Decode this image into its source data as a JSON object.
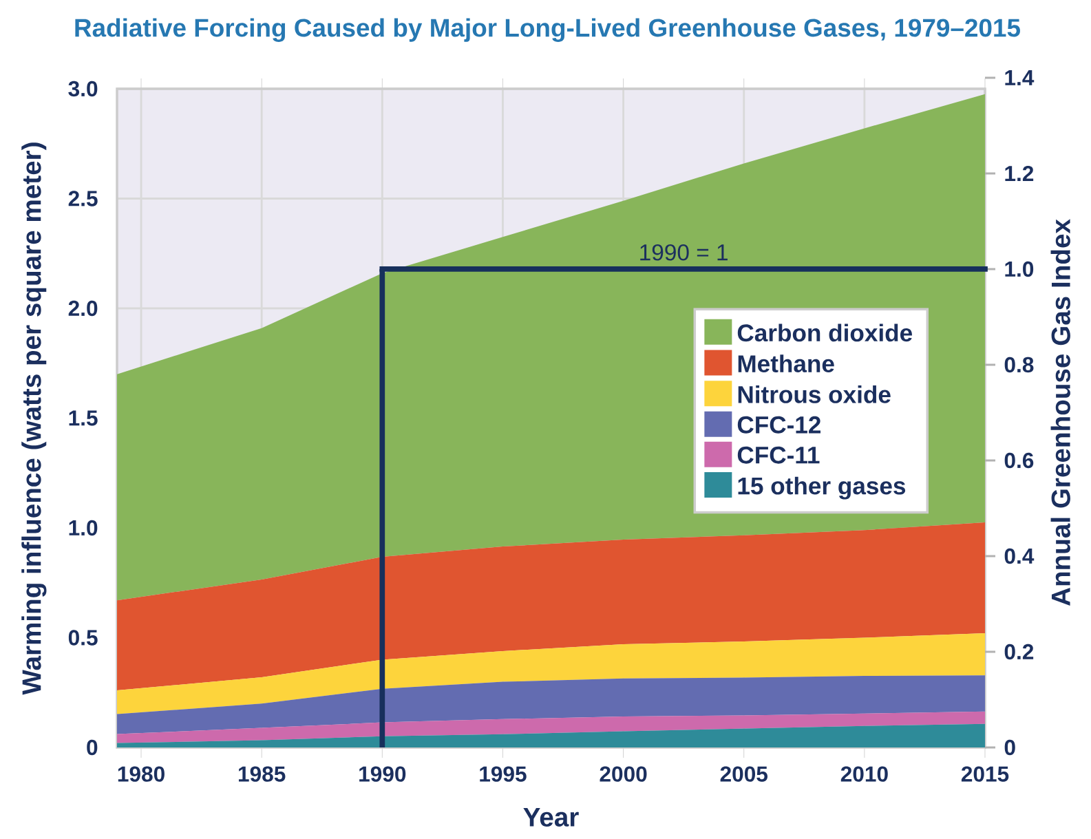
{
  "chart_data": {
    "type": "area",
    "stacked": true,
    "title": "Radiative Forcing Caused by Major Long-Lived Greenhouse Gases, 1979–2015",
    "xlabel": "Year",
    "ylabel": "Warming influence (watts per square meter)",
    "y2label": "Annual Greenhouse Gas Index",
    "x": [
      1979,
      1985,
      1990,
      1995,
      2000,
      2005,
      2010,
      2015
    ],
    "series": [
      {
        "name": "15 other gases",
        "color": "#2e8b99",
        "values": [
          0.02,
          0.033,
          0.051,
          0.06,
          0.074,
          0.086,
          0.098,
          0.107
        ]
      },
      {
        "name": "CFC-11",
        "color": "#cd6aac",
        "values": [
          0.041,
          0.056,
          0.063,
          0.069,
          0.067,
          0.06,
          0.056,
          0.057
        ]
      },
      {
        "name": "CFC-12",
        "color": "#636cb1",
        "values": [
          0.091,
          0.111,
          0.153,
          0.17,
          0.173,
          0.172,
          0.172,
          0.164
        ]
      },
      {
        "name": "Nitrous oxide",
        "color": "#fdd43c",
        "values": [
          0.108,
          0.12,
          0.133,
          0.14,
          0.156,
          0.165,
          0.174,
          0.192
        ]
      },
      {
        "name": "Methane",
        "color": "#e05530",
        "values": [
          0.41,
          0.445,
          0.468,
          0.476,
          0.477,
          0.483,
          0.49,
          0.505
        ]
      },
      {
        "name": "Carbon dioxide",
        "color": "#88b55a",
        "values": [
          1.03,
          1.145,
          1.292,
          1.41,
          1.543,
          1.694,
          1.83,
          1.951
        ]
      }
    ],
    "xlim": [
      1979,
      2015
    ],
    "xticks": [
      1980,
      1985,
      1990,
      1995,
      2000,
      2005,
      2010,
      2015
    ],
    "ylim": [
      0,
      3
    ],
    "yticks": [
      0,
      0.5,
      {
        "value": 1,
        "label": "1.0"
      },
      1.5,
      {
        "value": 2,
        "label": "2.0"
      },
      2.5,
      {
        "value": 3,
        "label": "3.0"
      }
    ],
    "y2lim": [
      0,
      1.4
    ],
    "y2ticks": [
      0,
      0.2,
      0.4,
      0.6,
      0.8,
      {
        "value": 1,
        "label": "1.0"
      },
      1.2,
      1.4
    ],
    "ref_lines": [
      {
        "axis": "x",
        "value": 1990,
        "color": "#17305c"
      },
      {
        "axis": "y2",
        "value": 1,
        "label": "1990 = 1",
        "color": "#17305c"
      }
    ],
    "grid": true,
    "legend": "right"
  }
}
